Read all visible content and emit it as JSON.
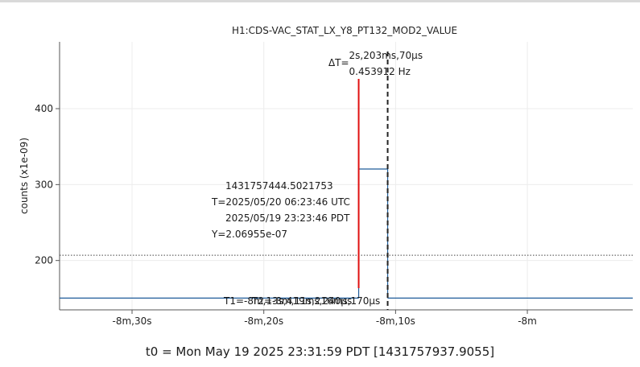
{
  "chart_data": {
    "type": "line",
    "title": "H1:CDS-VAC_STAT_LX_Y8_PT132_MOD2_VALUE",
    "xlabel": "",
    "ylabel": "counts (x1e-09)",
    "x_unit": "seconds relative to t0",
    "xlim": [
      -95.5,
      -52
    ],
    "ylim": [
      135,
      488
    ],
    "x_ticks": [
      {
        "value": -90,
        "label": "-8m,30s"
      },
      {
        "value": -80,
        "label": "-8m,20s"
      },
      {
        "value": -70,
        "label": "-8m,10s"
      },
      {
        "value": -60,
        "label": "-8m"
      }
    ],
    "y_ticks": [
      {
        "value": 200,
        "label": "200"
      },
      {
        "value": 300,
        "label": "300"
      },
      {
        "value": 400,
        "label": "400"
      }
    ],
    "grid": true,
    "series": [
      {
        "color": "#1f5c99",
        "steps": [
          {
            "x0": -95.5,
            "x1": -72.8,
            "y": 150.5
          },
          {
            "x0": -72.8,
            "x1": -70.6,
            "y": 320.5
          },
          {
            "x0": -70.6,
            "x1": -52,
            "y": 150.5
          }
        ]
      }
    ],
    "reference_line": {
      "y": 206.955,
      "style": "dotted"
    },
    "cursors": {
      "T1": {
        "x": -72.8,
        "color": "#e01010"
      },
      "T2": {
        "x": -70.6,
        "color": "#222222",
        "style": "dashed"
      }
    },
    "annotations": {
      "delta_label": "ΔT=",
      "delta_time": "2s,203ms,70µs",
      "delta_freq": "0.453912 Hz",
      "gps": "1431757444.5021753",
      "utc": "T=2025/05/20 06:23:46 UTC",
      "pdt": "2025/05/19 23:23:46 PDT",
      "yval": "Y=2.06955e-07",
      "t1": "T1=-8m,13s,419ms,240µs",
      "t2": "T2=-8m,11s,216ms,170µs"
    },
    "t0_label": "t0 = Mon May 19 2025 23:31:59 PDT [1431757937.9055]"
  }
}
